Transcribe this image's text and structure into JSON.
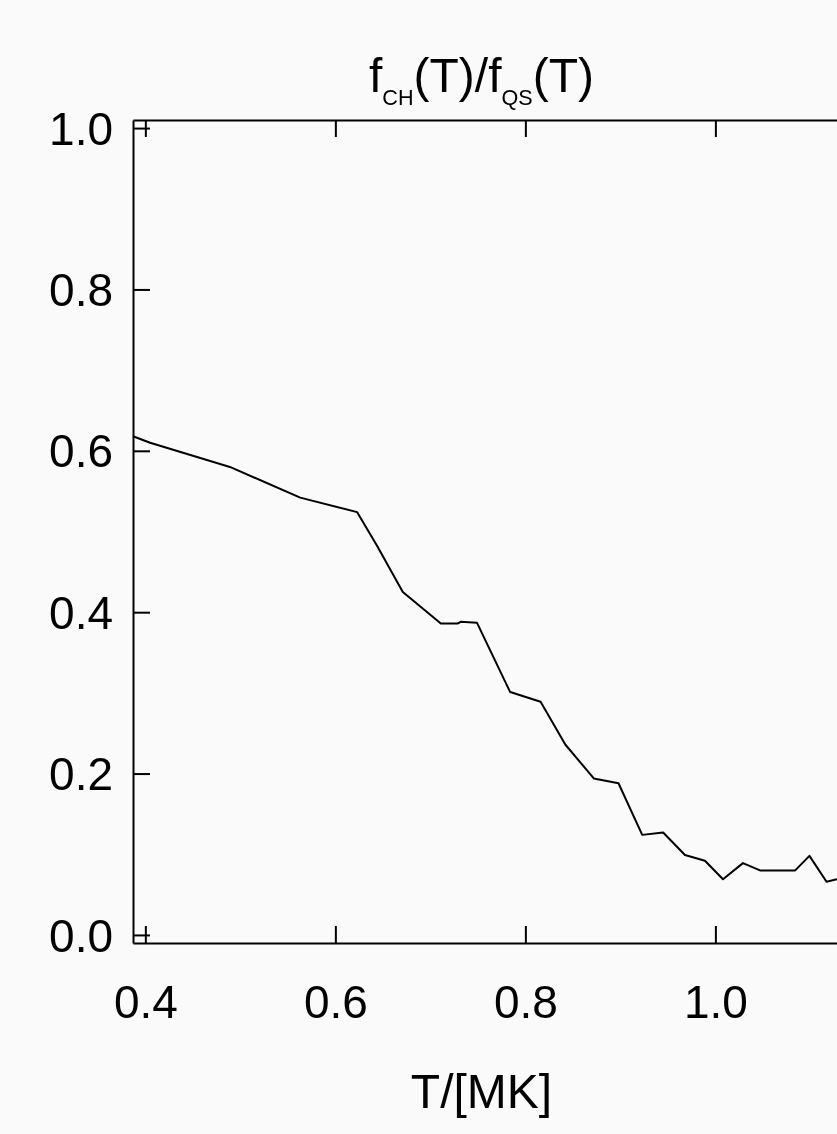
{
  "chart_data": {
    "type": "line",
    "title": "f$_{CH}$(T)/f$_{QS}$(T)",
    "xlabel": "T/[MK]",
    "x": [
      0.387,
      0.405,
      0.489,
      0.563,
      0.623,
      0.644,
      0.671,
      0.711,
      0.729,
      0.732,
      0.749,
      0.784,
      0.816,
      0.842,
      0.872,
      0.898,
      0.923,
      0.945,
      0.968,
      0.989,
      1.008,
      1.029,
      1.047,
      1.084,
      1.099,
      1.117,
      1.128
    ],
    "series": [
      {
        "color": "#000000",
        "values": [
          0.618,
          0.61,
          0.58,
          0.542,
          0.524,
          0.482,
          0.425,
          0.386,
          0.386,
          0.388,
          0.387,
          0.301,
          0.289,
          0.236,
          0.194,
          0.188,
          0.124,
          0.127,
          0.099,
          0.092,
          0.069,
          0.089,
          0.08,
          0.08,
          0.098,
          0.066,
          0.069
        ]
      }
    ],
    "xlim": [
      0.387,
      1.128
    ],
    "ylim": [
      -0.01,
      1.01
    ],
    "xticks": [
      {
        "value": 0.4,
        "label": "0.4"
      },
      {
        "value": 0.6,
        "label": "0.6"
      },
      {
        "value": 0.8,
        "label": "0.8"
      },
      {
        "value": 1.0,
        "label": "1.0"
      }
    ],
    "yticks": [
      {
        "value": 0,
        "label": "0.0"
      },
      {
        "value": 0.2,
        "label": "0.2"
      },
      {
        "value": 0.4,
        "label": "0.4"
      },
      {
        "value": 0.6,
        "label": "0.6"
      },
      {
        "value": 0.8,
        "label": "0.8"
      },
      {
        "value": 1.0,
        "label": "1.0"
      }
    ],
    "grid": false,
    "marker": "none",
    "line_style": "solid"
  }
}
